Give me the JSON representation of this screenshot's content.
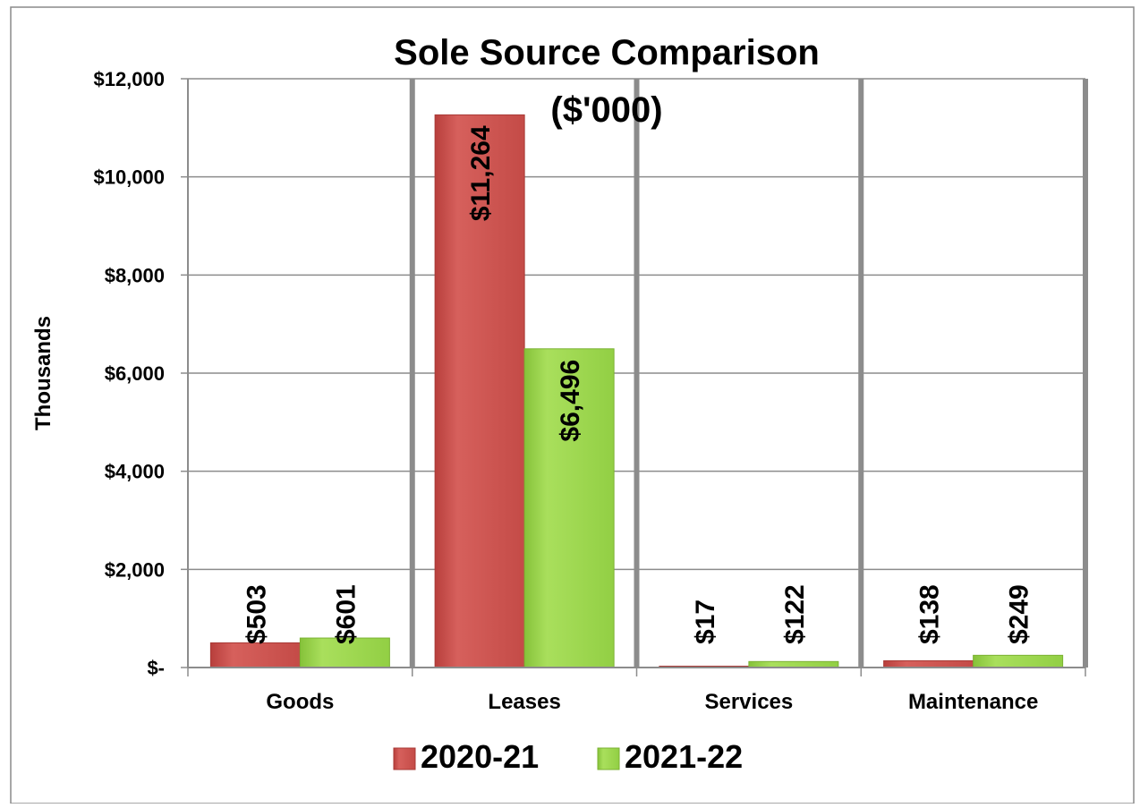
{
  "chart_data": {
    "type": "bar",
    "title": "Sole Source Comparison",
    "subtitle": "($'000)",
    "ylabel": "Thousands",
    "xlabel": "",
    "categories": [
      "Goods",
      "Leases",
      "Services",
      "Maintenance"
    ],
    "series": [
      {
        "name": "2020-21",
        "values": [
          503,
          11264,
          17,
          138
        ],
        "labels": [
          "$503",
          "$11,264",
          "$17",
          "$138"
        ],
        "color": "#cd5450"
      },
      {
        "name": "2021-22",
        "values": [
          601,
          6496,
          122,
          249
        ],
        "labels": [
          "$601",
          "$6,496",
          "$122",
          "$249"
        ],
        "color": "#9fd850"
      }
    ],
    "ylim": [
      0,
      12000
    ],
    "yticks": [
      0,
      2000,
      4000,
      6000,
      8000,
      10000,
      12000
    ],
    "ytick_labels": [
      "$-",
      "$2,000",
      "$4,000",
      "$6,000",
      "$8,000",
      "$10,000",
      "$12,000"
    ],
    "grid": true,
    "legend_position": "bottom"
  }
}
